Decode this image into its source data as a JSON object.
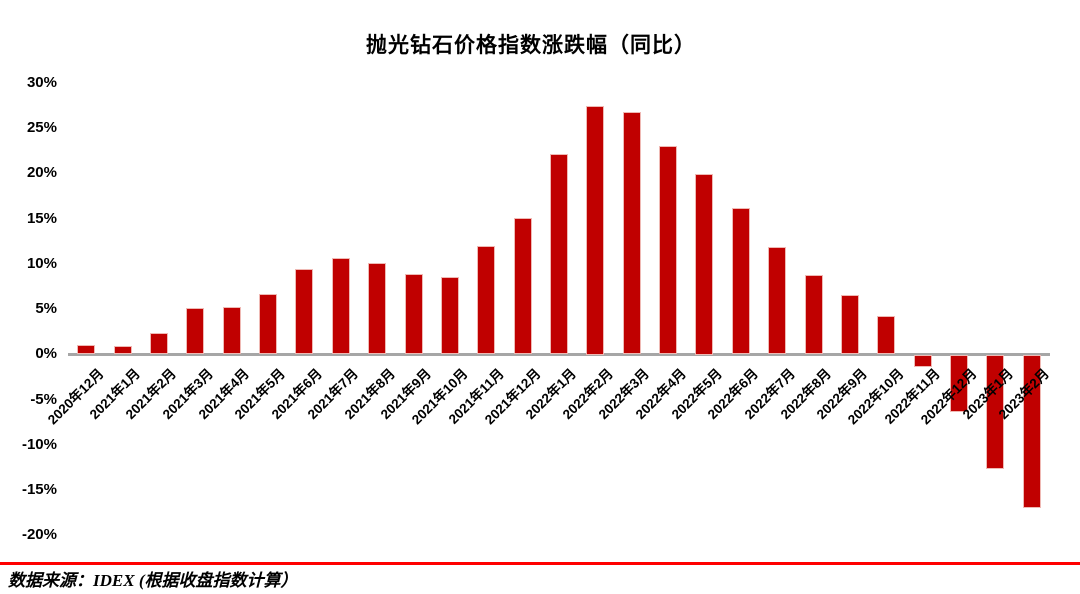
{
  "chart_data": {
    "type": "bar",
    "title": "抛光钻石价格指数涨跌幅（同比）",
    "categories": [
      "2020年12月",
      "2021年1月",
      "2021年2月",
      "2021年3月",
      "2021年4月",
      "2021年5月",
      "2021年6月",
      "2021年7月",
      "2021年8月",
      "2021年9月",
      "2021年10月",
      "2021年11月",
      "2021年12月",
      "2022年1月",
      "2022年2月",
      "2022年3月",
      "2022年4月",
      "2022年5月",
      "2022年6月",
      "2022年7月",
      "2022年8月",
      "2022年9月",
      "2022年10月",
      "2022年11月",
      "2022年12月",
      "2023年1月",
      "2023年2月"
    ],
    "values": [
      1.1,
      0.9,
      2.4,
      5.1,
      5.2,
      6.7,
      9.5,
      10.7,
      10.1,
      8.9,
      8.6,
      12.0,
      15.1,
      22.2,
      27.5,
      26.8,
      23.0,
      20.0,
      16.2,
      11.9,
      8.8,
      6.6,
      4.3,
      -1.4,
      -6.4,
      -12.7,
      -17.0
    ],
    "value_unit": "%",
    "xlabel": "",
    "ylabel": "",
    "ylim": [
      -20,
      30
    ],
    "yticks": [
      30,
      25,
      20,
      15,
      10,
      5,
      0,
      -5,
      -10,
      -15,
      -20
    ],
    "ytick_suffix": "%",
    "grid": false,
    "legend_position": "none",
    "bar_color": "#C00000",
    "bar_edge_color": "#EFB9B4",
    "axis_line_color": "#A6A6A6"
  },
  "footer": {
    "source_text": "数据来源：IDEX (根据收盘指数计算）",
    "rule_color": "#FF0000"
  }
}
